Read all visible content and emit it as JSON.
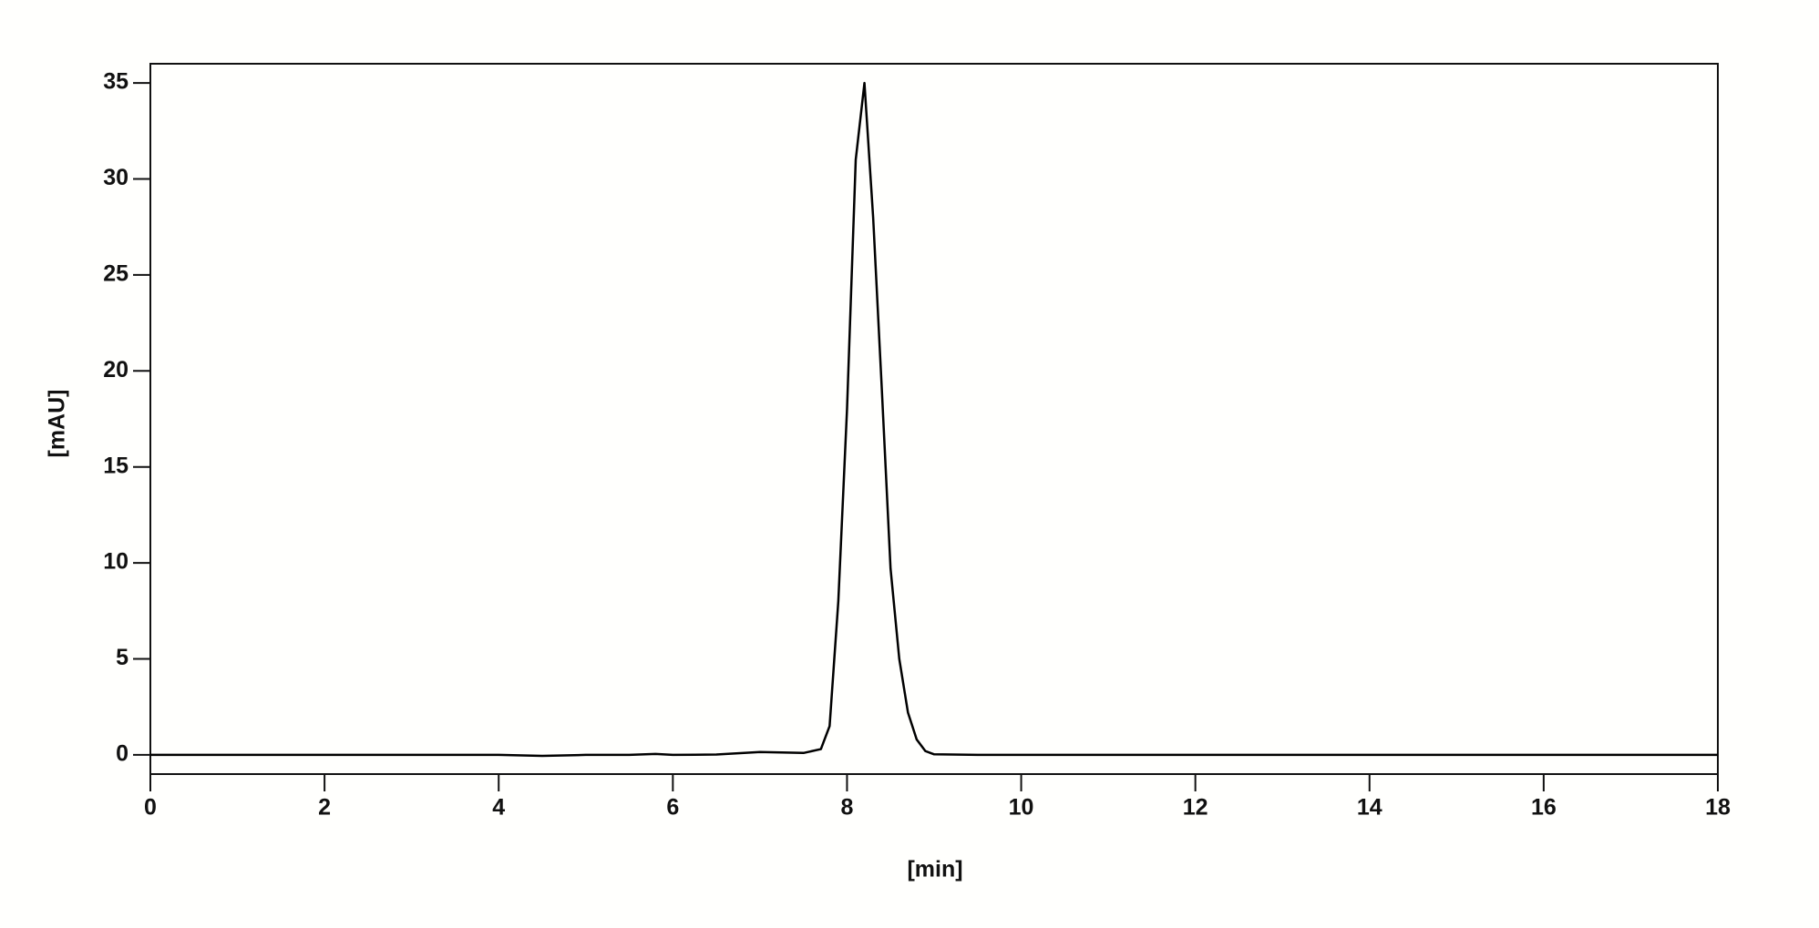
{
  "chart_data": {
    "type": "line",
    "xlabel": "[min]",
    "ylabel": "[mAU]",
    "x": [
      0,
      1,
      2,
      3,
      4,
      4.5,
      5,
      5.5,
      5.8,
      6,
      6.5,
      7,
      7.5,
      7.7,
      7.8,
      7.9,
      8.0,
      8.1,
      8.2,
      8.3,
      8.4,
      8.5,
      8.6,
      8.7,
      8.8,
      8.9,
      9.0,
      9.5,
      10,
      12,
      14,
      16,
      18
    ],
    "values": [
      0,
      0,
      0,
      0,
      0,
      -0.05,
      0,
      0,
      0.05,
      0,
      0.02,
      0.15,
      0.1,
      0.3,
      1.5,
      8,
      18,
      31,
      35,
      28,
      19,
      9.7,
      5,
      2.2,
      0.8,
      0.2,
      0.03,
      0,
      0,
      0,
      0,
      0,
      0
    ],
    "color": "#000000",
    "xlim": [
      0,
      18
    ],
    "xticks": [
      0,
      2,
      4,
      6,
      8,
      10,
      12,
      14,
      16,
      18
    ],
    "ylim": [
      -1,
      36
    ],
    "yticks": [
      0,
      5,
      10,
      15,
      20,
      25,
      30,
      35
    ]
  }
}
